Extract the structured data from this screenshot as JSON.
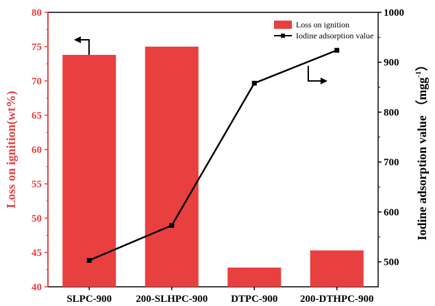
{
  "chart_data": {
    "type": "bar+line",
    "categories": [
      "SLPC-900",
      "200-SLHPC-900",
      "DTPC-900",
      "200-DTHPC-900"
    ],
    "series": [
      {
        "name": "Loss on ignition",
        "type": "bar",
        "axis": "left",
        "values": [
          73.8,
          75.0,
          42.8,
          45.3
        ],
        "color": "#e8403f"
      },
      {
        "name": "Iodine adsorption value",
        "type": "line",
        "axis": "right",
        "values": [
          503,
          573,
          858,
          924
        ],
        "color": "#000000"
      }
    ],
    "ylabel_left": "Loss on ignition(wt%)",
    "ylabel_right_prefix": "Iodine adsorption value （mgg",
    "ylabel_right_sup": "-1",
    "ylabel_right_suffix": "）",
    "ylim_left": [
      40,
      80
    ],
    "ylim_right": [
      450,
      1000
    ],
    "yticks_left": [
      "40",
      "45",
      "50",
      "55",
      "60",
      "65",
      "70",
      "75",
      "80"
    ],
    "yticks_right": [
      "500",
      "600",
      "700",
      "800",
      "900",
      "1000"
    ],
    "legend_position": "top-right",
    "grid": false,
    "left_axis_color": "#e8403f",
    "right_axis_color": "#000000"
  }
}
